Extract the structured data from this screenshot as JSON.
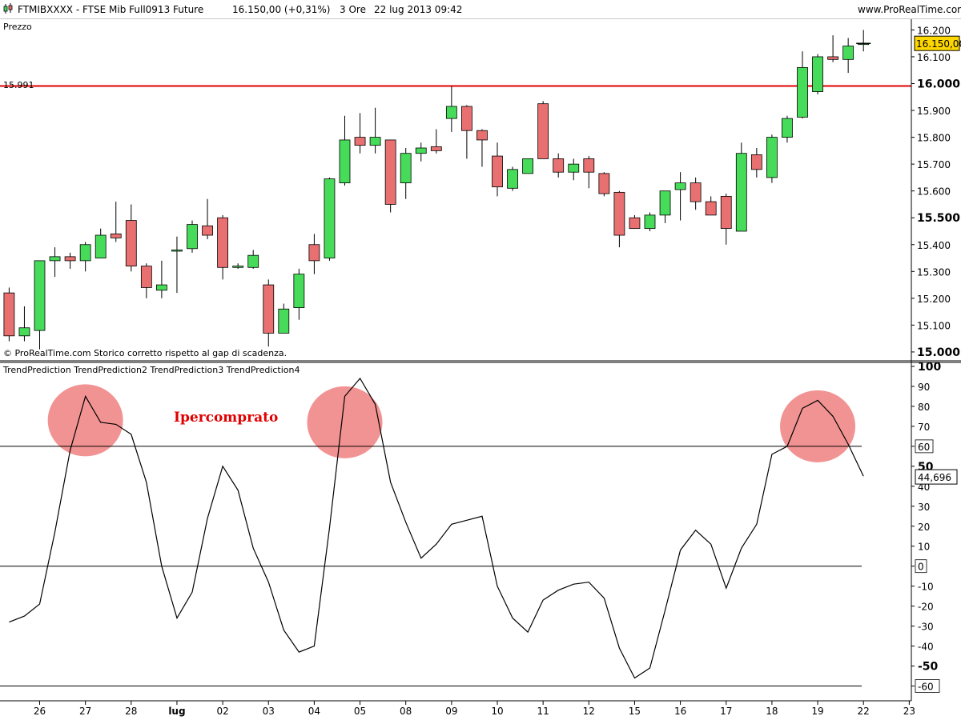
{
  "header": {
    "symbol": "FTMIBXXXX - FTSE Mib Full0913 Future",
    "price": "16.150,00 (+0,31%)",
    "timeframe": "3 Ore",
    "datetime": "22 lug 2013 09:42",
    "site": "www.ProRealTime.com"
  },
  "price_panel": {
    "title": "Prezzo",
    "footer": "© ProRealTime.com  Storico corretto rispetto al gap di scadenza.",
    "level_label": "15.991",
    "last_price_label": "16.150,00"
  },
  "indicator_panel": {
    "title": "TrendPrediction TrendPrediction2 TrendPrediction3 TrendPrediction4",
    "annotation": "Ipercomprato",
    "last_value_label": "44,696"
  },
  "x_axis": {
    "ticks": [
      {
        "label": "26",
        "slot": 2.5
      },
      {
        "label": "27",
        "slot": 5.5
      },
      {
        "label": "28",
        "slot": 8.5
      },
      {
        "label": "lug",
        "slot": 11.5
      },
      {
        "label": "02",
        "slot": 14.5
      },
      {
        "label": "03",
        "slot": 17.5
      },
      {
        "label": "04",
        "slot": 20.5
      },
      {
        "label": "05",
        "slot": 23.5
      },
      {
        "label": "08",
        "slot": 26.5
      },
      {
        "label": "09",
        "slot": 29.5
      },
      {
        "label": "10",
        "slot": 32.5
      },
      {
        "label": "11",
        "slot": 35.5
      },
      {
        "label": "12",
        "slot": 38.5
      },
      {
        "label": "15",
        "slot": 41.5
      },
      {
        "label": "16",
        "slot": 44.5
      },
      {
        "label": "17",
        "slot": 47.5
      },
      {
        "label": "18",
        "slot": 50.5
      },
      {
        "label": "19",
        "slot": 53.5
      },
      {
        "label": "22",
        "slot": 56.5
      },
      {
        "label": "23",
        "slot": 59.5
      }
    ]
  },
  "chart_data": [
    {
      "type": "candlestick",
      "title": "Prezzo",
      "ylim": [
        14970,
        16240
      ],
      "y_ticks": [
        {
          "value": 15000,
          "label": "15.000"
        },
        {
          "value": 15100,
          "label": "15.100"
        },
        {
          "value": 15200,
          "label": "15.200"
        },
        {
          "value": 15300,
          "label": "15.300"
        },
        {
          "value": 15400,
          "label": "15.400"
        },
        {
          "value": 15500,
          "label": "15.500"
        },
        {
          "value": 15600,
          "label": "15.600"
        },
        {
          "value": 15700,
          "label": "15.700"
        },
        {
          "value": 15800,
          "label": "15.800"
        },
        {
          "value": 15900,
          "label": "15.900"
        },
        {
          "value": 16000,
          "label": "16.000"
        },
        {
          "value": 16100,
          "label": "16.100"
        },
        {
          "value": 16200,
          "label": "16.200"
        }
      ],
      "horizontal_line": {
        "value": 15991,
        "color": "#e00000"
      },
      "last_price": 16150,
      "up_color": "#46dc5a",
      "down_color": "#e87070",
      "candles": [
        {
          "o": 15220,
          "h": 15240,
          "l": 15040,
          "c": 15060
        },
        {
          "o": 15060,
          "h": 15170,
          "l": 15040,
          "c": 15090
        },
        {
          "o": 15080,
          "h": 15340,
          "l": 15010,
          "c": 15340
        },
        {
          "o": 15340,
          "h": 15390,
          "l": 15280,
          "c": 15355
        },
        {
          "o": 15355,
          "h": 15370,
          "l": 15310,
          "c": 15340
        },
        {
          "o": 15340,
          "h": 15410,
          "l": 15300,
          "c": 15400
        },
        {
          "o": 15350,
          "h": 15460,
          "l": 15350,
          "c": 15435
        },
        {
          "o": 15440,
          "h": 15560,
          "l": 15410,
          "c": 15425
        },
        {
          "o": 15490,
          "h": 15550,
          "l": 15300,
          "c": 15320
        },
        {
          "o": 15320,
          "h": 15330,
          "l": 15200,
          "c": 15240
        },
        {
          "o": 15230,
          "h": 15340,
          "l": 15200,
          "c": 15250
        },
        {
          "o": 15380,
          "h": 15430,
          "l": 15220,
          "c": 15380
        },
        {
          "o": 15385,
          "h": 15490,
          "l": 15370,
          "c": 15475
        },
        {
          "o": 15470,
          "h": 15570,
          "l": 15420,
          "c": 15435
        },
        {
          "o": 15500,
          "h": 15510,
          "l": 15270,
          "c": 15315
        },
        {
          "o": 15315,
          "h": 15330,
          "l": 15310,
          "c": 15320
        },
        {
          "o": 15315,
          "h": 15380,
          "l": 15310,
          "c": 15360
        },
        {
          "o": 15250,
          "h": 15270,
          "l": 15020,
          "c": 15070
        },
        {
          "o": 15070,
          "h": 15180,
          "l": 15070,
          "c": 15160
        },
        {
          "o": 15165,
          "h": 15310,
          "l": 15120,
          "c": 15290
        },
        {
          "o": 15400,
          "h": 15440,
          "l": 15290,
          "c": 15340
        },
        {
          "o": 15350,
          "h": 15650,
          "l": 15340,
          "c": 15645
        },
        {
          "o": 15630,
          "h": 15880,
          "l": 15620,
          "c": 15790
        },
        {
          "o": 15800,
          "h": 15890,
          "l": 15740,
          "c": 15770
        },
        {
          "o": 15770,
          "h": 15910,
          "l": 15740,
          "c": 15800
        },
        {
          "o": 15790,
          "h": 15790,
          "l": 15520,
          "c": 15550
        },
        {
          "o": 15630,
          "h": 15760,
          "l": 15570,
          "c": 15740
        },
        {
          "o": 15740,
          "h": 15780,
          "l": 15710,
          "c": 15760
        },
        {
          "o": 15765,
          "h": 15830,
          "l": 15740,
          "c": 15750
        },
        {
          "o": 15870,
          "h": 15990,
          "l": 15820,
          "c": 15915
        },
        {
          "o": 15915,
          "h": 15920,
          "l": 15720,
          "c": 15825
        },
        {
          "o": 15825,
          "h": 15830,
          "l": 15690,
          "c": 15790
        },
        {
          "o": 15730,
          "h": 15780,
          "l": 15580,
          "c": 15615
        },
        {
          "o": 15610,
          "h": 15690,
          "l": 15600,
          "c": 15680
        },
        {
          "o": 15665,
          "h": 15720,
          "l": 15665,
          "c": 15720
        },
        {
          "o": 15925,
          "h": 15935,
          "l": 15720,
          "c": 15720
        },
        {
          "o": 15720,
          "h": 15740,
          "l": 15650,
          "c": 15670
        },
        {
          "o": 15670,
          "h": 15720,
          "l": 15640,
          "c": 15700
        },
        {
          "o": 15720,
          "h": 15730,
          "l": 15610,
          "c": 15670
        },
        {
          "o": 15665,
          "h": 15670,
          "l": 15580,
          "c": 15590
        },
        {
          "o": 15595,
          "h": 15600,
          "l": 15390,
          "c": 15435
        },
        {
          "o": 15500,
          "h": 15510,
          "l": 15460,
          "c": 15460
        },
        {
          "o": 15460,
          "h": 15520,
          "l": 15450,
          "c": 15510
        },
        {
          "o": 15510,
          "h": 15600,
          "l": 15480,
          "c": 15600
        },
        {
          "o": 15605,
          "h": 15670,
          "l": 15490,
          "c": 15630
        },
        {
          "o": 15630,
          "h": 15650,
          "l": 15530,
          "c": 15560
        },
        {
          "o": 15560,
          "h": 15580,
          "l": 15520,
          "c": 15510
        },
        {
          "o": 15580,
          "h": 15590,
          "l": 15400,
          "c": 15460
        },
        {
          "o": 15450,
          "h": 15780,
          "l": 15450,
          "c": 15740
        },
        {
          "o": 15735,
          "h": 15760,
          "l": 15650,
          "c": 15680
        },
        {
          "o": 15650,
          "h": 15810,
          "l": 15630,
          "c": 15800
        },
        {
          "o": 15800,
          "h": 15880,
          "l": 15780,
          "c": 15870
        },
        {
          "o": 15875,
          "h": 16120,
          "l": 15870,
          "c": 16060
        },
        {
          "o": 15970,
          "h": 16110,
          "l": 15960,
          "c": 16100
        },
        {
          "o": 16100,
          "h": 16180,
          "l": 16080,
          "c": 16090
        },
        {
          "o": 16090,
          "h": 16170,
          "l": 16040,
          "c": 16140
        },
        {
          "o": 16150,
          "h": 16200,
          "l": 16120,
          "c": 16150
        }
      ]
    },
    {
      "type": "line",
      "title": "TrendPrediction TrendPrediction2 TrendPrediction3 TrendPrediction4",
      "ylim": [
        -67,
        102
      ],
      "y_ticks": [
        {
          "value": 100,
          "label": "100"
        },
        {
          "value": 90,
          "label": "90"
        },
        {
          "value": 80,
          "label": "80"
        },
        {
          "value": 70,
          "label": "70"
        },
        {
          "value": 60,
          "label": "60"
        },
        {
          "value": 50,
          "label": "50"
        },
        {
          "value": 40,
          "label": "40"
        },
        {
          "value": 30,
          "label": "30"
        },
        {
          "value": 20,
          "label": "20"
        },
        {
          "value": 10,
          "label": "10"
        },
        {
          "value": 0,
          "label": "0"
        },
        {
          "value": -10,
          "label": "-10"
        },
        {
          "value": -20,
          "label": "-20"
        },
        {
          "value": -30,
          "label": "-30"
        },
        {
          "value": -40,
          "label": "-40"
        },
        {
          "value": -50,
          "label": "-50"
        },
        {
          "value": -60,
          "label": "-60"
        }
      ],
      "boxed_ticks": [
        60,
        0,
        -60
      ],
      "horizontal_lines": [
        60,
        0,
        -60
      ],
      "last_value": 44.696,
      "values": [
        -28,
        -25,
        -19,
        17,
        58,
        85,
        72,
        71,
        66,
        42,
        0,
        -26,
        -13,
        24,
        50,
        38,
        9,
        -8,
        -32,
        -43,
        -40,
        19,
        85,
        94,
        81,
        42,
        22,
        4,
        11,
        21,
        23,
        25,
        -10,
        -26,
        -33,
        -17,
        -12,
        -9,
        -8,
        -16,
        -41,
        -56,
        -51,
        -22,
        8,
        18,
        11,
        -11,
        9,
        21,
        56,
        60,
        79,
        83,
        75,
        61,
        45
      ],
      "highlights": [
        {
          "slot": 5.5,
          "value": 73
        },
        {
          "slot": 22.5,
          "value": 72
        },
        {
          "slot": 53.5,
          "value": 70
        }
      ],
      "highlight_color": "#f08080"
    }
  ]
}
